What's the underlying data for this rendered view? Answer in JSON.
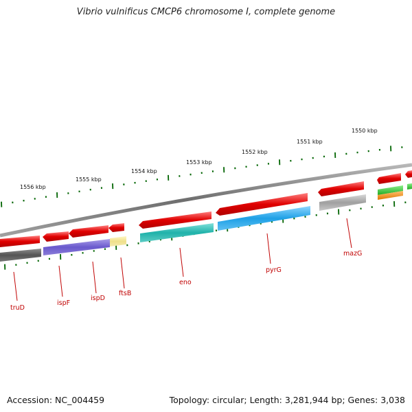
{
  "title": "Vibrio vulnificus CMCP6 chromosome I, complete genome",
  "footer": {
    "accession": "Accession: NC_004459",
    "summary": "Topology: circular; Length: 3,281,944 bp; Genes: 3,038"
  },
  "kbp_labels": [
    "1556 kbp",
    "1555 kbp",
    "1554 kbp",
    "1553 kbp",
    "1552 kbp",
    "1551 kbp",
    "1550 kbp"
  ],
  "gene_labels": [
    "truD",
    "ispF",
    "ispD",
    "ftsB",
    "eno",
    "pyrG",
    "mazG"
  ],
  "colors": {
    "backbone": "#808080",
    "gene_red": "#e00000",
    "gray": "#8c8c8c",
    "dark_gray": "#555555",
    "purple": "#6a5acd",
    "yellow": "#efe08a",
    "teal": "#20b2aa",
    "blue": "#1ea0e6",
    "green": "#22bb22",
    "orange": "#ff8c00",
    "tick_green": "#006400",
    "label_red": "#c00000"
  }
}
